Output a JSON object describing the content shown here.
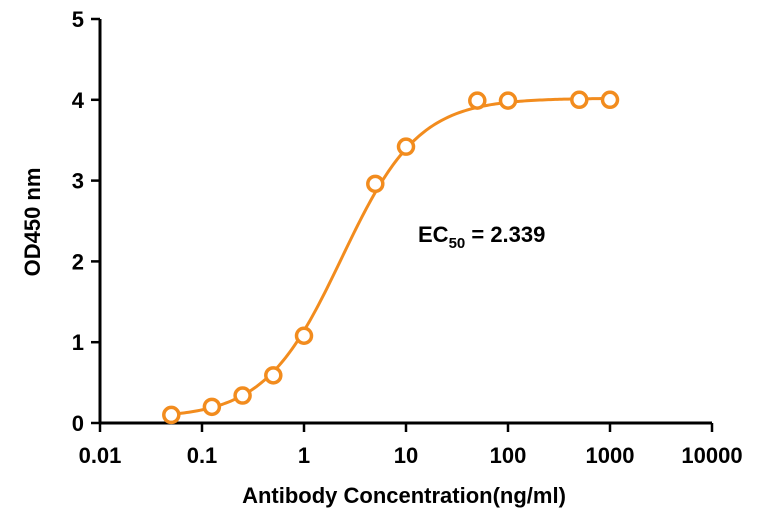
{
  "chart_data": {
    "type": "scatter",
    "xlabel": "Antibody Concentration(ng/ml)",
    "ylabel": "OD450 nm",
    "xscale": "log",
    "xlim": [
      0.01,
      10000
    ],
    "ylim": [
      0,
      5
    ],
    "xticks": [
      0.01,
      0.1,
      1,
      10,
      100,
      1000,
      10000
    ],
    "xtick_labels": [
      "0.01",
      "0.1",
      "1",
      "10",
      "100",
      "1000",
      "10000"
    ],
    "yticks": [
      0,
      1,
      2,
      3,
      4,
      5
    ],
    "ytick_labels": [
      "0",
      "1",
      "2",
      "3",
      "4",
      "5"
    ],
    "grid": false,
    "color": "#F28C1E",
    "points": {
      "x": [
        0.05,
        0.125,
        0.25,
        0.5,
        1,
        5,
        10,
        50,
        100,
        500,
        1000
      ],
      "y": [
        0.1,
        0.2,
        0.34,
        0.59,
        1.08,
        2.96,
        3.42,
        3.99,
        3.99,
        4.0,
        4.0
      ]
    },
    "fit": {
      "model": "4PL",
      "bottom": 0.06,
      "top": 4.02,
      "ec50": 2.339,
      "hill": 1.15
    },
    "annotation": {
      "prefix": "EC",
      "subscript": "50",
      "suffix": " = 2.339"
    }
  }
}
